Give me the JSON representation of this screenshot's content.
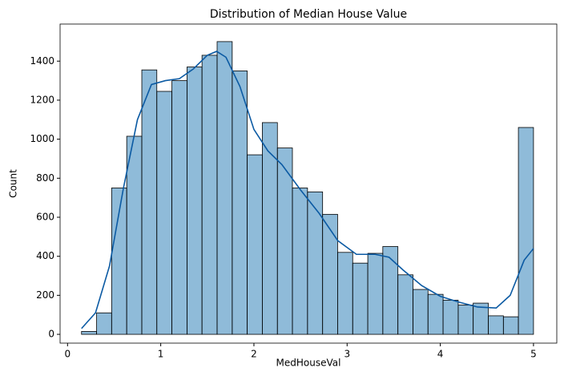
{
  "chart_data": {
    "type": "histogram",
    "title": "Distribution of Median House Value",
    "x_label": "MedHouseVal",
    "y_label": "Count",
    "bins": [
      0.15,
      0.312,
      0.473,
      0.635,
      0.797,
      0.958,
      1.12,
      1.282,
      1.443,
      1.605,
      1.767,
      1.928,
      2.09,
      2.252,
      2.413,
      2.575,
      2.737,
      2.898,
      3.06,
      3.222,
      3.383,
      3.545,
      3.707,
      3.868,
      4.03,
      4.192,
      4.353,
      4.515,
      4.677,
      4.838,
      5.0
    ],
    "values": [
      15,
      110,
      750,
      1015,
      1355,
      1245,
      1300,
      1370,
      1430,
      1500,
      1350,
      920,
      1085,
      955,
      750,
      730,
      615,
      420,
      365,
      415,
      450,
      305,
      230,
      205,
      175,
      150,
      160,
      95,
      90,
      1060
    ],
    "color": "#1f77b4",
    "edge_color": "#000000",
    "kde": {
      "x": [
        0.15,
        0.3,
        0.45,
        0.6,
        0.75,
        0.9,
        1.05,
        1.2,
        1.35,
        1.5,
        1.6,
        1.7,
        1.85,
        2.0,
        2.15,
        2.3,
        2.5,
        2.7,
        2.9,
        3.1,
        3.3,
        3.45,
        3.6,
        3.8,
        4.0,
        4.2,
        4.4,
        4.6,
        4.75,
        4.9,
        5.0
      ],
      "values": [
        30,
        110,
        350,
        750,
        1100,
        1280,
        1300,
        1310,
        1360,
        1430,
        1450,
        1420,
        1270,
        1050,
        940,
        870,
        740,
        620,
        480,
        410,
        410,
        395,
        330,
        250,
        195,
        165,
        140,
        135,
        200,
        380,
        440
      ],
      "color": "#0b5aa3"
    },
    "xlim": [
      -0.08,
      5.25
    ],
    "ylim": [
      -45,
      1590
    ],
    "xticks": [
      0,
      1,
      2,
      3,
      4,
      5
    ],
    "yticks": [
      0,
      200,
      400,
      600,
      800,
      1000,
      1200,
      1400
    ]
  }
}
